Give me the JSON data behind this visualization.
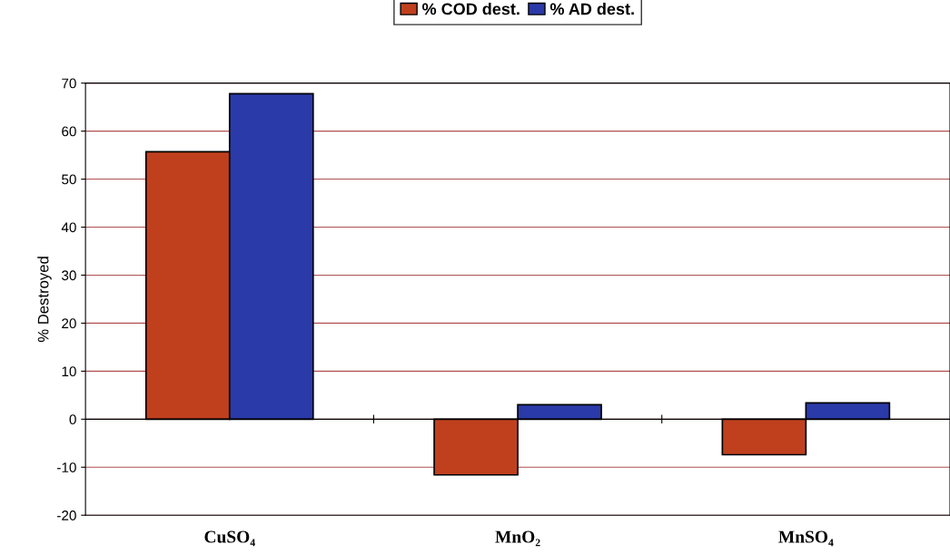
{
  "chart_data": {
    "type": "bar",
    "ylabel": "% Destroyed",
    "categories": [
      "CuSO₄",
      "MnO₂",
      "MnSO₄"
    ],
    "series": [
      {
        "name": "% COD dest.",
        "color": "#c0401e",
        "values": [
          55.7,
          -11.6,
          -7.4
        ]
      },
      {
        "name": "% AD dest.",
        "color": "#2a3aa8",
        "values": [
          67.8,
          3.0,
          3.4
        ]
      }
    ],
    "ylim": [
      -20,
      70
    ],
    "yticks": [
      -20,
      -10,
      0,
      10,
      20,
      30,
      40,
      50,
      60,
      70
    ],
    "grid": "y",
    "legend": "top"
  }
}
